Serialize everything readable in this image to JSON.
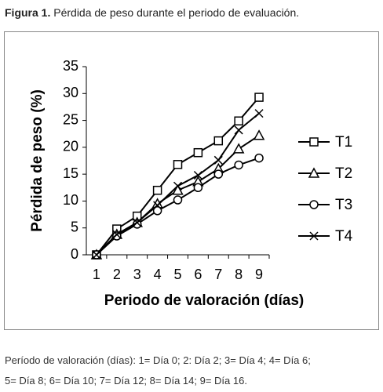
{
  "caption": {
    "label": "Figura 1.",
    "text": "Pérdida de peso durante el periodo de evaluación."
  },
  "chart_data": {
    "type": "line",
    "y_label": "Pérdida de peso (%)",
    "x_label": "Periodo de valoración (días)",
    "categories": [
      "1",
      "2",
      "3",
      "4",
      "5",
      "6",
      "7",
      "8",
      "9"
    ],
    "series": [
      {
        "name": "T1",
        "color": "#000000",
        "marker": "square",
        "values": [
          0,
          4.8,
          7.2,
          12,
          16.8,
          19,
          21.2,
          24.9,
          29.3
        ]
      },
      {
        "name": "T2",
        "color": "#000000",
        "marker": "triangle",
        "values": [
          0,
          3.8,
          6,
          9.5,
          12,
          13.6,
          16,
          19.7,
          22.2
        ]
      },
      {
        "name": "T3",
        "color": "#000000",
        "marker": "circle",
        "values": [
          0,
          3.5,
          5.7,
          8.2,
          10.2,
          12.5,
          15,
          16.7,
          18
        ]
      },
      {
        "name": "T4",
        "color": "#000000",
        "marker": "x",
        "values": [
          0,
          3.8,
          6,
          9.2,
          12.8,
          14.8,
          17.6,
          23.2,
          26.3
        ]
      }
    ],
    "ylim": [
      0,
      35
    ],
    "yticks": [
      0,
      5,
      10,
      15,
      20,
      25,
      30,
      35
    ],
    "grid": false,
    "legend": "right"
  },
  "note": [
    "Período de valoración (días): 1= Día 0; 2: Día 2; 3= Día 4; 4= Día 6;",
    "5= Día 8; 6= Día 10; 7= Día 12; 8= Día 14; 9= Día 16."
  ]
}
